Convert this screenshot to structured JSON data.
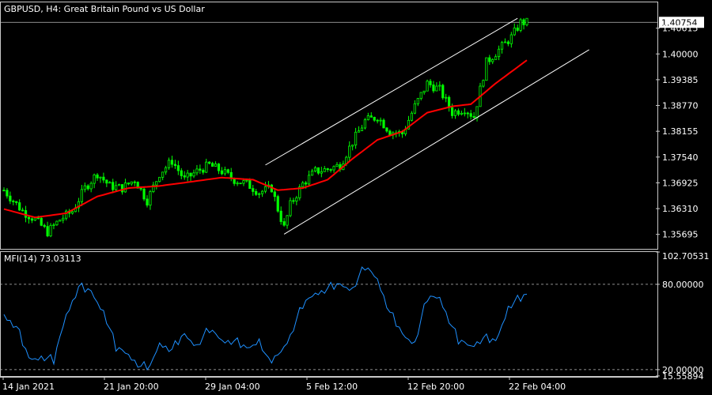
{
  "window": {
    "title": "GBPUSD, H4:  Great Britain Pound vs US Dollar",
    "indicator_label": "MFI(14) 73.03113"
  },
  "colors": {
    "background": "#000000",
    "candle": "#00ff00",
    "moving_average": "#ff0000",
    "channel": "#ffffff",
    "mfi_line": "#1e90ff",
    "price_tag": "#ffffff"
  },
  "chart_data": [
    {
      "type": "candlestick",
      "title": "GBPUSD, H4:  Great Britain Pound vs US Dollar",
      "ylim": [
        1.3535,
        1.4123
      ],
      "y_ticks": [
        "1.40754",
        "1.40615",
        "1.40000",
        "1.39385",
        "1.38770",
        "1.38155",
        "1.37540",
        "1.36925",
        "1.36310",
        "1.35695"
      ],
      "current_price": "1.40754",
      "x_ticks": [
        "14 Jan 2021",
        "21 Jan 20:00",
        "29 Jan 04:00",
        "5 Feb 12:00",
        "12 Feb 20:00",
        "22 Feb 04:00"
      ],
      "close_anchors": [
        [
          0,
          1.3675
        ],
        [
          6,
          1.3625
        ],
        [
          10,
          1.3605
        ],
        [
          14,
          1.3575
        ],
        [
          18,
          1.3605
        ],
        [
          22,
          1.3625
        ],
        [
          26,
          1.368
        ],
        [
          30,
          1.3715
        ],
        [
          34,
          1.3685
        ],
        [
          38,
          1.368
        ],
        [
          42,
          1.37
        ],
        [
          46,
          1.365
        ],
        [
          50,
          1.3715
        ],
        [
          54,
          1.3745
        ],
        [
          58,
          1.37
        ],
        [
          62,
          1.372
        ],
        [
          66,
          1.3735
        ],
        [
          70,
          1.372
        ],
        [
          74,
          1.37
        ],
        [
          78,
          1.369
        ],
        [
          82,
          1.367
        ],
        [
          86,
          1.368
        ],
        [
          88,
          1.363
        ],
        [
          90,
          1.3585
        ],
        [
          92,
          1.364
        ],
        [
          96,
          1.369
        ],
        [
          100,
          1.372
        ],
        [
          104,
          1.3725
        ],
        [
          108,
          1.3735
        ],
        [
          112,
          1.379
        ],
        [
          116,
          1.384
        ],
        [
          120,
          1.385
        ],
        [
          124,
          1.3815
        ],
        [
          128,
          1.381
        ],
        [
          132,
          1.3875
        ],
        [
          136,
          1.393
        ],
        [
          140,
          1.3915
        ],
        [
          144,
          1.386
        ],
        [
          148,
          1.387
        ],
        [
          151,
          1.385
        ],
        [
          155,
          1.398
        ],
        [
          159,
          1.401
        ],
        [
          163,
          1.404
        ],
        [
          166,
          1.4075
        ],
        [
          168,
          1.4075
        ]
      ],
      "ma_anchors": [
        [
          0,
          1.363
        ],
        [
          10,
          1.361
        ],
        [
          20,
          1.362
        ],
        [
          30,
          1.366
        ],
        [
          40,
          1.368
        ],
        [
          50,
          1.3685
        ],
        [
          60,
          1.3695
        ],
        [
          70,
          1.3705
        ],
        [
          80,
          1.37
        ],
        [
          88,
          1.3675
        ],
        [
          96,
          1.368
        ],
        [
          104,
          1.37
        ],
        [
          112,
          1.375
        ],
        [
          120,
          1.3795
        ],
        [
          128,
          1.3815
        ],
        [
          136,
          1.386
        ],
        [
          144,
          1.3875
        ],
        [
          150,
          1.388
        ],
        [
          158,
          1.393
        ],
        [
          168,
          1.3985
        ]
      ],
      "channel": {
        "upper": [
          [
            84,
            1.3735
          ],
          [
            165,
            1.4085
          ]
        ],
        "lower": [
          [
            90,
            1.357
          ],
          [
            188,
            1.401
          ]
        ]
      },
      "n_bars": 169
    },
    {
      "type": "line",
      "title": "MFI(14) 73.03113",
      "name": "MFI(14)",
      "ylim": [
        15.5,
        102.70531
      ],
      "y_ticks": [
        "102.70531",
        "80.00000",
        "20.00000",
        "15.55894"
      ],
      "levels": [
        80,
        20
      ],
      "last_value": 73.03113,
      "anchors": [
        [
          0,
          60
        ],
        [
          4,
          50
        ],
        [
          8,
          28
        ],
        [
          12,
          30
        ],
        [
          16,
          26
        ],
        [
          20,
          60
        ],
        [
          24,
          78
        ],
        [
          28,
          75
        ],
        [
          32,
          62
        ],
        [
          36,
          35
        ],
        [
          40,
          32
        ],
        [
          44,
          22
        ],
        [
          47,
          22
        ],
        [
          50,
          40
        ],
        [
          54,
          34
        ],
        [
          58,
          45
        ],
        [
          62,
          38
        ],
        [
          66,
          48
        ],
        [
          70,
          42
        ],
        [
          74,
          40
        ],
        [
          78,
          35
        ],
        [
          82,
          42
        ],
        [
          85,
          25
        ],
        [
          88,
          30
        ],
        [
          92,
          45
        ],
        [
          96,
          65
        ],
        [
          100,
          75
        ],
        [
          104,
          77
        ],
        [
          108,
          80
        ],
        [
          112,
          78
        ],
        [
          116,
          92
        ],
        [
          120,
          85
        ],
        [
          124,
          60
        ],
        [
          128,
          45
        ],
        [
          132,
          40
        ],
        [
          136,
          70
        ],
        [
          140,
          72
        ],
        [
          144,
          50
        ],
        [
          146,
          40
        ],
        [
          150,
          38
        ],
        [
          154,
          42
        ],
        [
          158,
          40
        ],
        [
          162,
          65
        ],
        [
          166,
          70
        ],
        [
          168,
          73.03113
        ]
      ]
    }
  ]
}
